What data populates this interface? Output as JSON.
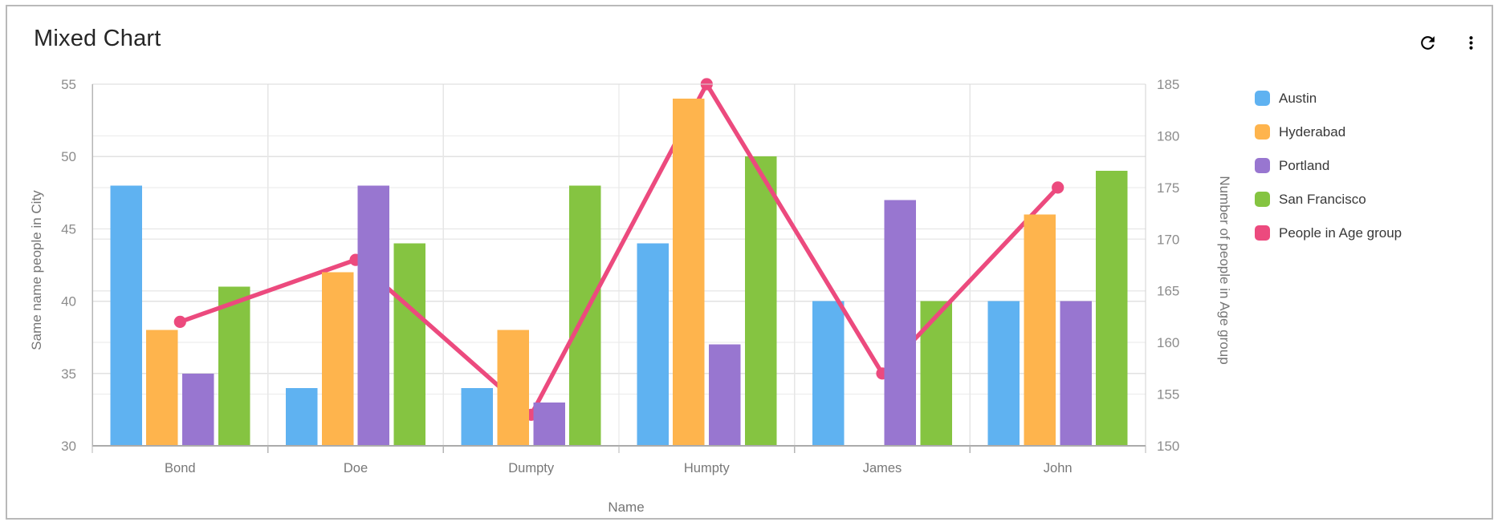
{
  "card": {
    "title": "Mixed Chart",
    "icon_color": "#1d86e8",
    "icons": [
      {
        "name": "refresh-icon"
      },
      {
        "name": "kebab-menu-icon"
      }
    ]
  },
  "chart_data": {
    "type": "mixed bar + line",
    "title": "Mixed Chart",
    "categories": [
      "Bond",
      "Doe",
      "Dumpty",
      "Humpty",
      "James",
      "John"
    ],
    "series": [
      {
        "name": "Austin",
        "type": "bar",
        "axis": "left",
        "color": "#5fb2f1",
        "values": [
          48,
          34,
          34,
          44,
          40,
          40
        ]
      },
      {
        "name": "Hyderabad",
        "type": "bar",
        "axis": "left",
        "color": "#feb44d",
        "values": [
          38,
          42,
          38,
          54,
          null,
          46
        ]
      },
      {
        "name": "Portland",
        "type": "bar",
        "axis": "left",
        "color": "#9876d0",
        "values": [
          35,
          48,
          33,
          37,
          47,
          40
        ]
      },
      {
        "name": "San Francisco",
        "type": "bar",
        "axis": "left",
        "color": "#85c441",
        "values": [
          41,
          44,
          48,
          50,
          40,
          49
        ]
      },
      {
        "name": "People in Age group",
        "type": "line",
        "axis": "right",
        "color": "#ec4a7e",
        "values": [
          162,
          168,
          153,
          185,
          157,
          175
        ]
      }
    ],
    "xlabel": "Name",
    "ylabel": "Same name people in City",
    "y2label": "Number of people in Age group",
    "ylim": [
      30,
      55
    ],
    "y_ticks": [
      30,
      35,
      40,
      45,
      50,
      55
    ],
    "y2lim": [
      150,
      185
    ],
    "y2_ticks": [
      150,
      155,
      160,
      165,
      170,
      175,
      180,
      185
    ],
    "grid": true,
    "legend": {
      "position": "right",
      "items": [
        "Austin",
        "Hyderabad",
        "Portland",
        "San Francisco",
        "People in Age group"
      ]
    }
  }
}
